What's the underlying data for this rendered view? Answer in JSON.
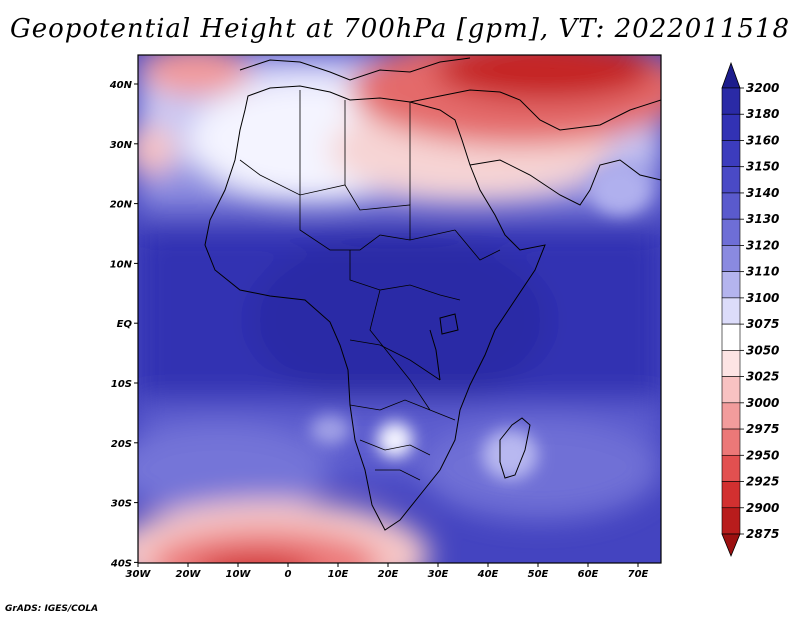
{
  "title": "Geopotential Height at 700hPa [gpm], VT: 2022011518",
  "credit": "GrADS: IGES/COLA",
  "map": {
    "lon_labels": [
      "30W",
      "20W",
      "10W",
      "0",
      "10E",
      "20E",
      "30E",
      "40E",
      "50E",
      "60E",
      "70E"
    ],
    "lat_labels": [
      "40N",
      "30N",
      "20N",
      "10N",
      "EQ",
      "10S",
      "20S",
      "30S",
      "40S"
    ]
  },
  "colorbar": {
    "levels": [
      "3200",
      "3180",
      "3160",
      "3150",
      "3140",
      "3130",
      "3120",
      "3110",
      "3100",
      "3075",
      "3050",
      "3025",
      "3000",
      "2975",
      "2950",
      "2925",
      "2900",
      "2875"
    ],
    "colors": [
      "#1c1c8c",
      "#2a2aa6",
      "#3232b4",
      "#3c3cbd",
      "#4a4ac6",
      "#5a5acd",
      "#6e6ed6",
      "#8a8ae0",
      "#b4b4ee",
      "#dcdcfa",
      "#ffffff",
      "#fde4e4",
      "#f8c2c2",
      "#f29c9c",
      "#ec7878",
      "#e25050",
      "#d23030",
      "#b81c1c",
      "#9c1010"
    ]
  }
}
